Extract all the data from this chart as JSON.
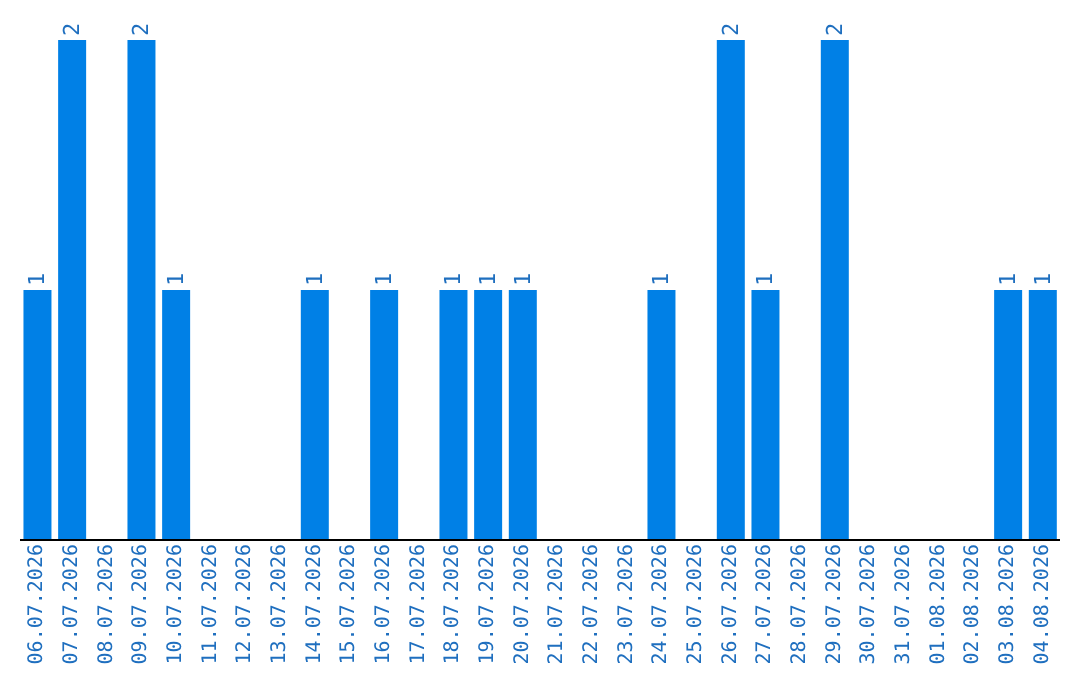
{
  "chart_data": {
    "type": "bar",
    "categories": [
      "06.07.2026",
      "07.07.2026",
      "08.07.2026",
      "09.07.2026",
      "10.07.2026",
      "11.07.2026",
      "12.07.2026",
      "13.07.2026",
      "14.07.2026",
      "15.07.2026",
      "16.07.2026",
      "17.07.2026",
      "18.07.2026",
      "19.07.2026",
      "20.07.2026",
      "21.07.2026",
      "22.07.2026",
      "23.07.2026",
      "24.07.2026",
      "25.07.2026",
      "26.07.2026",
      "27.07.2026",
      "28.07.2026",
      "29.07.2026",
      "30.07.2026",
      "31.07.2026",
      "01.08.2026",
      "02.08.2026",
      "03.08.2026",
      "04.08.2026"
    ],
    "values": [
      1,
      2,
      0,
      2,
      1,
      0,
      0,
      0,
      1,
      0,
      1,
      0,
      1,
      1,
      1,
      0,
      0,
      0,
      1,
      0,
      2,
      1,
      0,
      2,
      0,
      0,
      0,
      0,
      1,
      1
    ],
    "value_labels": [
      "1",
      "2",
      null,
      "2",
      "1",
      null,
      null,
      null,
      "1",
      null,
      "1",
      null,
      "1",
      "1",
      "1",
      null,
      null,
      null,
      "1",
      null,
      "2",
      "1",
      null,
      "2",
      null,
      null,
      null,
      null,
      "1",
      "1"
    ],
    "color": "#0080e6",
    "grid": false,
    "legend": false
  }
}
